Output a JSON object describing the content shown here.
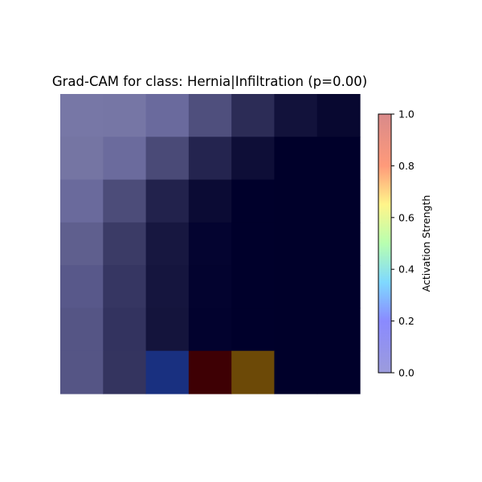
{
  "title": "Grad-CAM for class: Hernia|Infiltration (p=0.00)",
  "colorbar": {
    "label": "Activation Strength",
    "ticks": [
      "0.0",
      "0.2",
      "0.4",
      "0.6",
      "0.8",
      "1.0"
    ],
    "range": [
      0.0,
      1.0
    ],
    "colormap": "jet (semi-transparent overlay)"
  },
  "chart_data": {
    "type": "heatmap",
    "title": "Grad-CAM for class: Hernia|Infiltration (p=0.00)",
    "rows": 7,
    "cols": 7,
    "cell_colors": [
      [
        "#7777a6",
        "#7676a5",
        "#6a6a9d",
        "#4f4f7d",
        "#2c2c56",
        "#12123b",
        "#080830"
      ],
      [
        "#7575a3",
        "#6b6b9d",
        "#4a4a77",
        "#24244f",
        "#0e0e37",
        "#00002a",
        "#00002a"
      ],
      [
        "#6a6a9c",
        "#4c4c79",
        "#22224c",
        "#0b0b34",
        "#00002b",
        "#00002a",
        "#00002a"
      ],
      [
        "#5f5f8e",
        "#3b3b66",
        "#171740",
        "#040430",
        "#00002b",
        "#00002a",
        "#00002a"
      ],
      [
        "#58588a",
        "#363662",
        "#15153e",
        "#03032f",
        "#00002b",
        "#00002a",
        "#00002a"
      ],
      [
        "#555585",
        "#33335f",
        "#14143c",
        "#02022e",
        "#00002b",
        "#00002a",
        "#00002a"
      ],
      [
        "#555585",
        "#34345f",
        "#193080",
        "#3e0004",
        "#6c4907",
        "#00002a",
        "#00002a"
      ]
    ]
  }
}
